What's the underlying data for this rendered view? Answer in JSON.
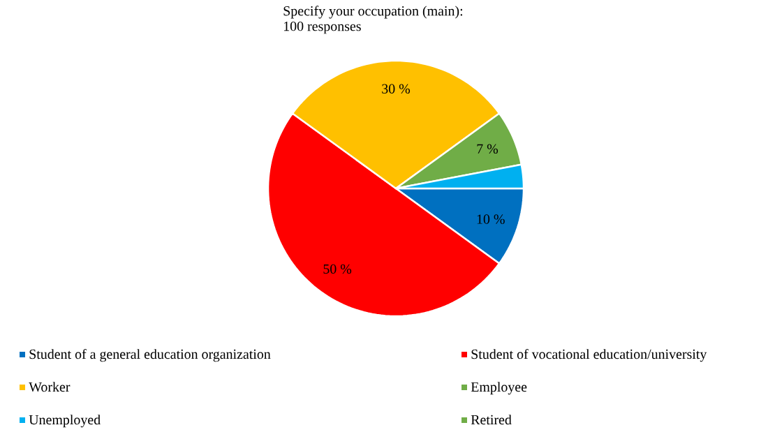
{
  "chart_data": {
    "type": "pie",
    "title": "Specify your occupation (main):",
    "subtitle": "100 responses",
    "categories": [
      "Student of a general education organization",
      "Student of vocational education/university",
      "Worker",
      "Employee",
      "Unemployed",
      "Retired"
    ],
    "values": [
      10,
      50,
      30,
      7,
      3,
      0
    ],
    "colors": [
      "#0070c0",
      "#ff0000",
      "#ffc000",
      "#70ad47",
      "#00b0f0",
      "#70ad47"
    ],
    "value_labels": [
      "10 %",
      "50 %",
      "30 %",
      "7 %",
      null,
      null
    ],
    "legend": "bottom"
  }
}
